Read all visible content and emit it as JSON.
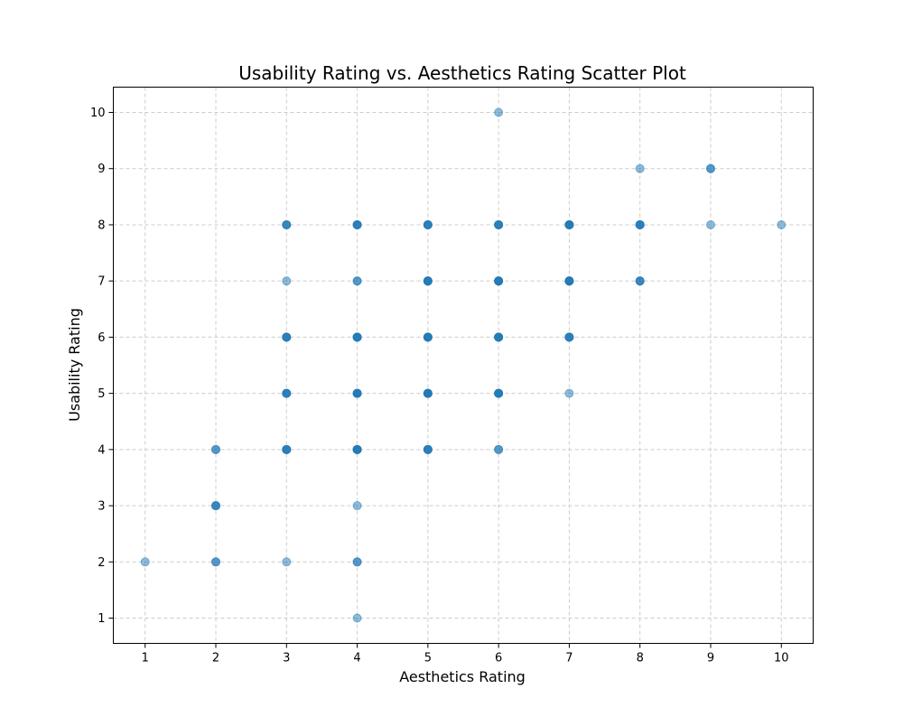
{
  "chart_data": {
    "type": "scatter",
    "title": "Usability Rating vs. Aesthetics Rating Scatter Plot",
    "xlabel": "Aesthetics Rating",
    "ylabel": "Usability Rating",
    "xlim": [
      0.55,
      10.45
    ],
    "ylim": [
      0.55,
      10.45
    ],
    "x_ticks": [
      1,
      2,
      3,
      4,
      5,
      6,
      7,
      8,
      9,
      10
    ],
    "y_ticks": [
      1,
      2,
      3,
      4,
      5,
      6,
      7,
      8,
      9,
      10
    ],
    "grid": true,
    "marker_color": "#1f77b4",
    "marker_opacity": 0.5,
    "points": [
      [
        1,
        2
      ],
      [
        2,
        2
      ],
      [
        2,
        2
      ],
      [
        2,
        3
      ],
      [
        2,
        3
      ],
      [
        2,
        3
      ],
      [
        2,
        4
      ],
      [
        2,
        4
      ],
      [
        3,
        2
      ],
      [
        3,
        4
      ],
      [
        3,
        4
      ],
      [
        3,
        4
      ],
      [
        3,
        4
      ],
      [
        3,
        5
      ],
      [
        3,
        5
      ],
      [
        3,
        5
      ],
      [
        3,
        5
      ],
      [
        3,
        6
      ],
      [
        3,
        6
      ],
      [
        3,
        6
      ],
      [
        3,
        6
      ],
      [
        3,
        7
      ],
      [
        3,
        8
      ],
      [
        3,
        8
      ],
      [
        3,
        8
      ],
      [
        4,
        1
      ],
      [
        4,
        2
      ],
      [
        4,
        2
      ],
      [
        4,
        3
      ],
      [
        4,
        4
      ],
      [
        4,
        4
      ],
      [
        4,
        4
      ],
      [
        4,
        4
      ],
      [
        4,
        4
      ],
      [
        4,
        5
      ],
      [
        4,
        5
      ],
      [
        4,
        5
      ],
      [
        4,
        5
      ],
      [
        4,
        5
      ],
      [
        4,
        6
      ],
      [
        4,
        6
      ],
      [
        4,
        6
      ],
      [
        4,
        6
      ],
      [
        4,
        6
      ],
      [
        4,
        7
      ],
      [
        4,
        7
      ],
      [
        4,
        8
      ],
      [
        4,
        8
      ],
      [
        4,
        8
      ],
      [
        4,
        8
      ],
      [
        5,
        4
      ],
      [
        5,
        4
      ],
      [
        5,
        4
      ],
      [
        5,
        4
      ],
      [
        5,
        5
      ],
      [
        5,
        5
      ],
      [
        5,
        5
      ],
      [
        5,
        5
      ],
      [
        5,
        5
      ],
      [
        5,
        5
      ],
      [
        5,
        6
      ],
      [
        5,
        6
      ],
      [
        5,
        6
      ],
      [
        5,
        6
      ],
      [
        5,
        6
      ],
      [
        5,
        7
      ],
      [
        5,
        7
      ],
      [
        5,
        7
      ],
      [
        5,
        7
      ],
      [
        5,
        7
      ],
      [
        5,
        8
      ],
      [
        5,
        8
      ],
      [
        5,
        8
      ],
      [
        5,
        8
      ],
      [
        6,
        4
      ],
      [
        6,
        4
      ],
      [
        6,
        5
      ],
      [
        6,
        5
      ],
      [
        6,
        5
      ],
      [
        6,
        5
      ],
      [
        6,
        5
      ],
      [
        6,
        6
      ],
      [
        6,
        6
      ],
      [
        6,
        6
      ],
      [
        6,
        6
      ],
      [
        6,
        6
      ],
      [
        6,
        7
      ],
      [
        6,
        7
      ],
      [
        6,
        7
      ],
      [
        6,
        7
      ],
      [
        6,
        7
      ],
      [
        6,
        8
      ],
      [
        6,
        8
      ],
      [
        6,
        8
      ],
      [
        6,
        8
      ],
      [
        6,
        10
      ],
      [
        7,
        5
      ],
      [
        7,
        6
      ],
      [
        7,
        6
      ],
      [
        7,
        6
      ],
      [
        7,
        6
      ],
      [
        7,
        7
      ],
      [
        7,
        7
      ],
      [
        7,
        7
      ],
      [
        7,
        7
      ],
      [
        7,
        7
      ],
      [
        7,
        8
      ],
      [
        7,
        8
      ],
      [
        7,
        8
      ],
      [
        7,
        8
      ],
      [
        7,
        8
      ],
      [
        8,
        7
      ],
      [
        8,
        7
      ],
      [
        8,
        7
      ],
      [
        8,
        8
      ],
      [
        8,
        8
      ],
      [
        8,
        8
      ],
      [
        8,
        8
      ],
      [
        8,
        9
      ],
      [
        9,
        8
      ],
      [
        9,
        9
      ],
      [
        9,
        9
      ],
      [
        10,
        8
      ]
    ]
  }
}
